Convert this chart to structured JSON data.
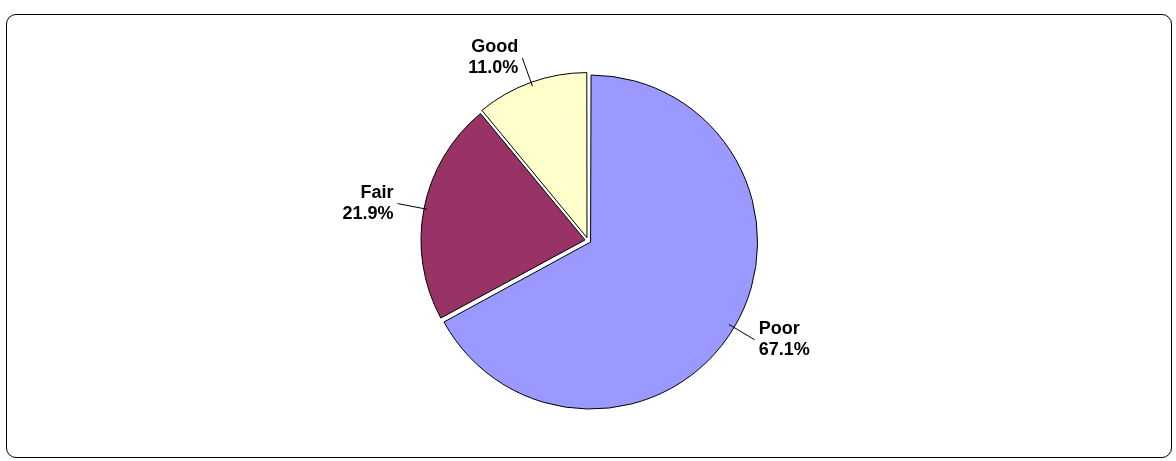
{
  "chart_data": {
    "type": "pie",
    "categories": [
      "Poor",
      "Fair",
      "Good"
    ],
    "values": [
      67.1,
      21.9,
      11.0
    ],
    "value_labels": [
      "67.1%",
      "21.9%",
      "11.0%"
    ],
    "colors": [
      "#9999ff",
      "#993366",
      "#ffffcc"
    ],
    "legend": false
  }
}
